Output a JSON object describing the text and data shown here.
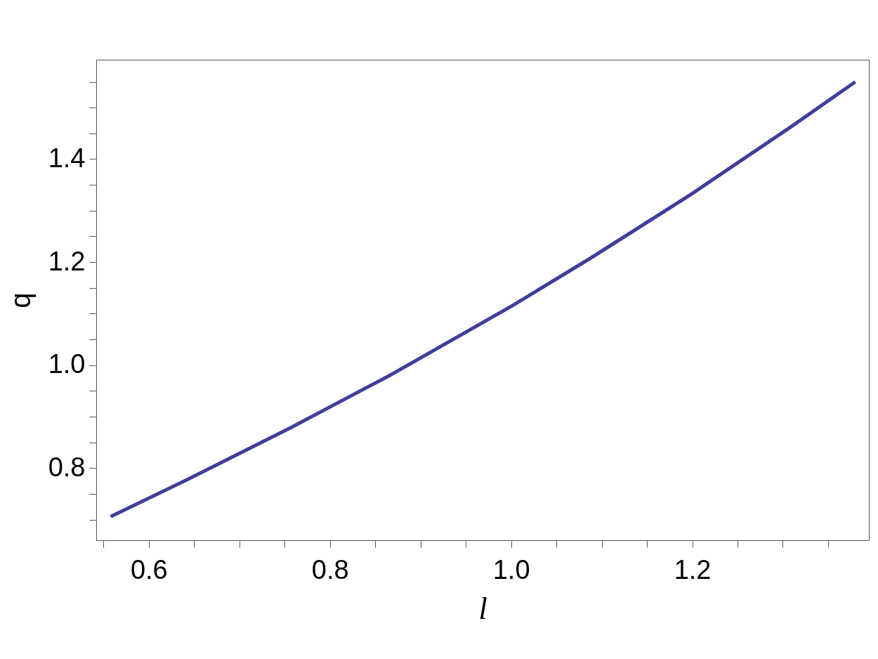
{
  "chart_data": {
    "type": "line",
    "xlabel": "l",
    "ylabel": "q",
    "xlim": [
      0.542,
      1.395
    ],
    "ylim": [
      0.66,
      1.593
    ],
    "xticks": [
      {
        "value": 0.55,
        "label": null
      },
      0.6,
      {
        "value": 0.65,
        "label": null
      },
      {
        "value": 0.7,
        "label": null
      },
      {
        "value": 0.75,
        "label": null
      },
      0.8,
      {
        "value": 0.85,
        "label": null
      },
      {
        "value": 0.9,
        "label": null
      },
      {
        "value": 0.95,
        "label": null
      },
      {
        "value": 1.0,
        "label": "1.0"
      },
      {
        "value": 1.05,
        "label": null
      },
      {
        "value": 1.1,
        "label": null
      },
      {
        "value": 1.15,
        "label": null
      },
      1.2,
      {
        "value": 1.25,
        "label": null
      },
      {
        "value": 1.3,
        "label": null
      },
      {
        "value": 1.35,
        "label": null
      }
    ],
    "yticks": [
      {
        "value": 0.7,
        "label": null
      },
      {
        "value": 0.75,
        "label": null
      },
      0.8,
      {
        "value": 0.85,
        "label": null
      },
      {
        "value": 0.9,
        "label": null
      },
      {
        "value": 0.95,
        "label": null
      },
      {
        "value": 1.0,
        "label": "1.0"
      },
      {
        "value": 1.05,
        "label": null
      },
      {
        "value": 1.1,
        "label": null
      },
      {
        "value": 1.15,
        "label": null
      },
      1.2,
      {
        "value": 1.25,
        "label": null
      },
      {
        "value": 1.3,
        "label": null
      },
      {
        "value": 1.35,
        "label": null
      },
      1.4,
      {
        "value": 1.45,
        "label": null
      },
      {
        "value": 1.5,
        "label": null
      },
      {
        "value": 1.55,
        "label": null
      }
    ],
    "grid": false,
    "marker": "none",
    "line_style": "solid",
    "series": [
      {
        "color": "#3f3f9b",
        "x": [
          0.558,
          0.645,
          0.756,
          0.867,
          1.0,
          1.088,
          1.199,
          1.31,
          1.38
        ],
        "values": [
          0.706,
          0.78,
          0.878,
          0.981,
          1.114,
          1.208,
          1.332,
          1.464,
          1.55
        ]
      }
    ]
  }
}
